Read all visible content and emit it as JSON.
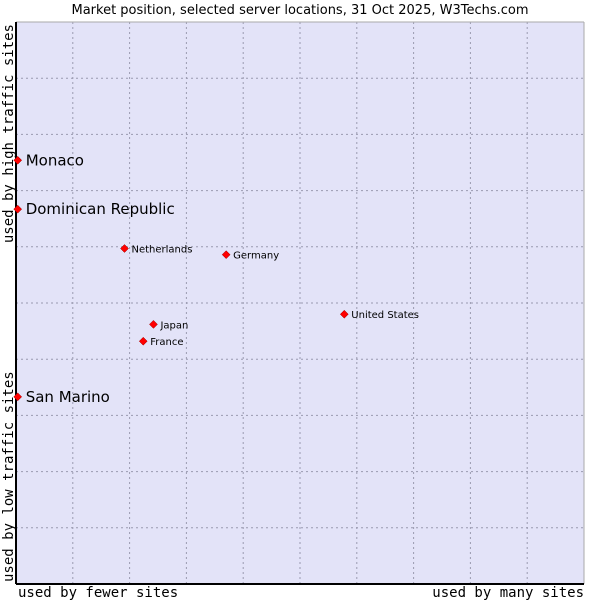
{
  "chart_data": {
    "type": "scatter",
    "title": "Market position, selected server locations, 31 Oct 2025, W3Techs.com",
    "xlabel_left": "used by fewer sites",
    "xlabel_right": "used by many sites",
    "ylabel_bottom": "used by low traffic sites",
    "ylabel_top": "used by high traffic sites",
    "xlim": [
      0,
      100
    ],
    "ylim": [
      0,
      100
    ],
    "grid": true,
    "point_color": "#ff0000",
    "plot_background": "#e3e3f8",
    "points": [
      {
        "name": "Monaco",
        "x": 0.3,
        "y": 75.4,
        "emphasis": true
      },
      {
        "name": "Dominican Republic",
        "x": 0.3,
        "y": 66.7,
        "emphasis": true
      },
      {
        "name": "Netherlands",
        "x": 19.1,
        "y": 59.7,
        "emphasis": false
      },
      {
        "name": "Germany",
        "x": 37.0,
        "y": 58.6,
        "emphasis": false
      },
      {
        "name": "United States",
        "x": 57.8,
        "y": 48.0,
        "emphasis": false
      },
      {
        "name": "Japan",
        "x": 24.2,
        "y": 46.2,
        "emphasis": false
      },
      {
        "name": "France",
        "x": 22.4,
        "y": 43.2,
        "emphasis": false
      },
      {
        "name": "San Marino",
        "x": 0.3,
        "y": 33.3,
        "emphasis": true
      }
    ]
  }
}
